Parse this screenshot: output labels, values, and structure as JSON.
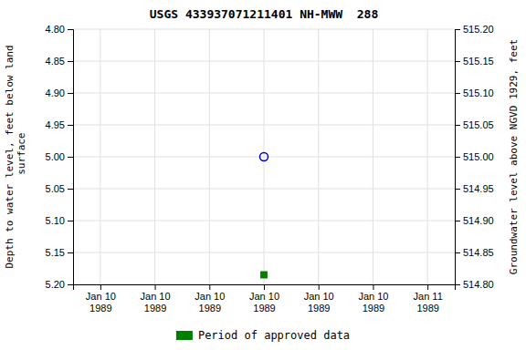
{
  "chart_data": {
    "type": "scatter",
    "title": "USGS 433937071211401 NH-MWW  288",
    "y_label": "Depth to water level, feet below land\n surface",
    "y2_label": "Groundwater level above NGVD 1929, feet",
    "categories": [
      "Jan 10\n1989",
      "Jan 10\n1989",
      "Jan 10\n1989",
      "Jan 10\n1989",
      "Jan 10\n1989",
      "Jan 10\n1989",
      "Jan 11\n1989"
    ],
    "series": [
      {
        "color": "#0000cc",
        "marker": "circle-open",
        "values": [
          null,
          null,
          null,
          5.0,
          null,
          null,
          null
        ]
      },
      {
        "name": "Period of approved data",
        "color": "#008000",
        "marker": "square",
        "values": [
          null,
          null,
          null,
          5.185,
          null,
          null,
          null
        ]
      }
    ],
    "ylim": [
      5.2,
      4.8
    ],
    "yticks": [
      {
        "value": 4.8,
        "label": "4.80"
      },
      4.85,
      {
        "value": 4.9,
        "label": "4.90"
      },
      4.95,
      {
        "value": 5.0,
        "label": "5.00"
      },
      5.05,
      {
        "value": 5.1,
        "label": "5.10"
      },
      5.15,
      {
        "value": 5.2,
        "label": "5.20"
      }
    ],
    "y2lim": [
      514.8,
      515.2
    ],
    "y2ticks": [
      {
        "value": 515.2,
        "label": "515.20"
      },
      515.15,
      {
        "value": 515.1,
        "label": "515.10"
      },
      515.05,
      {
        "value": 515.0,
        "label": "515.00"
      },
      514.95,
      {
        "value": 514.9,
        "label": "514.90"
      },
      514.85,
      {
        "value": 514.8,
        "label": "514.80"
      }
    ],
    "grid": true,
    "legend": "bottom"
  }
}
